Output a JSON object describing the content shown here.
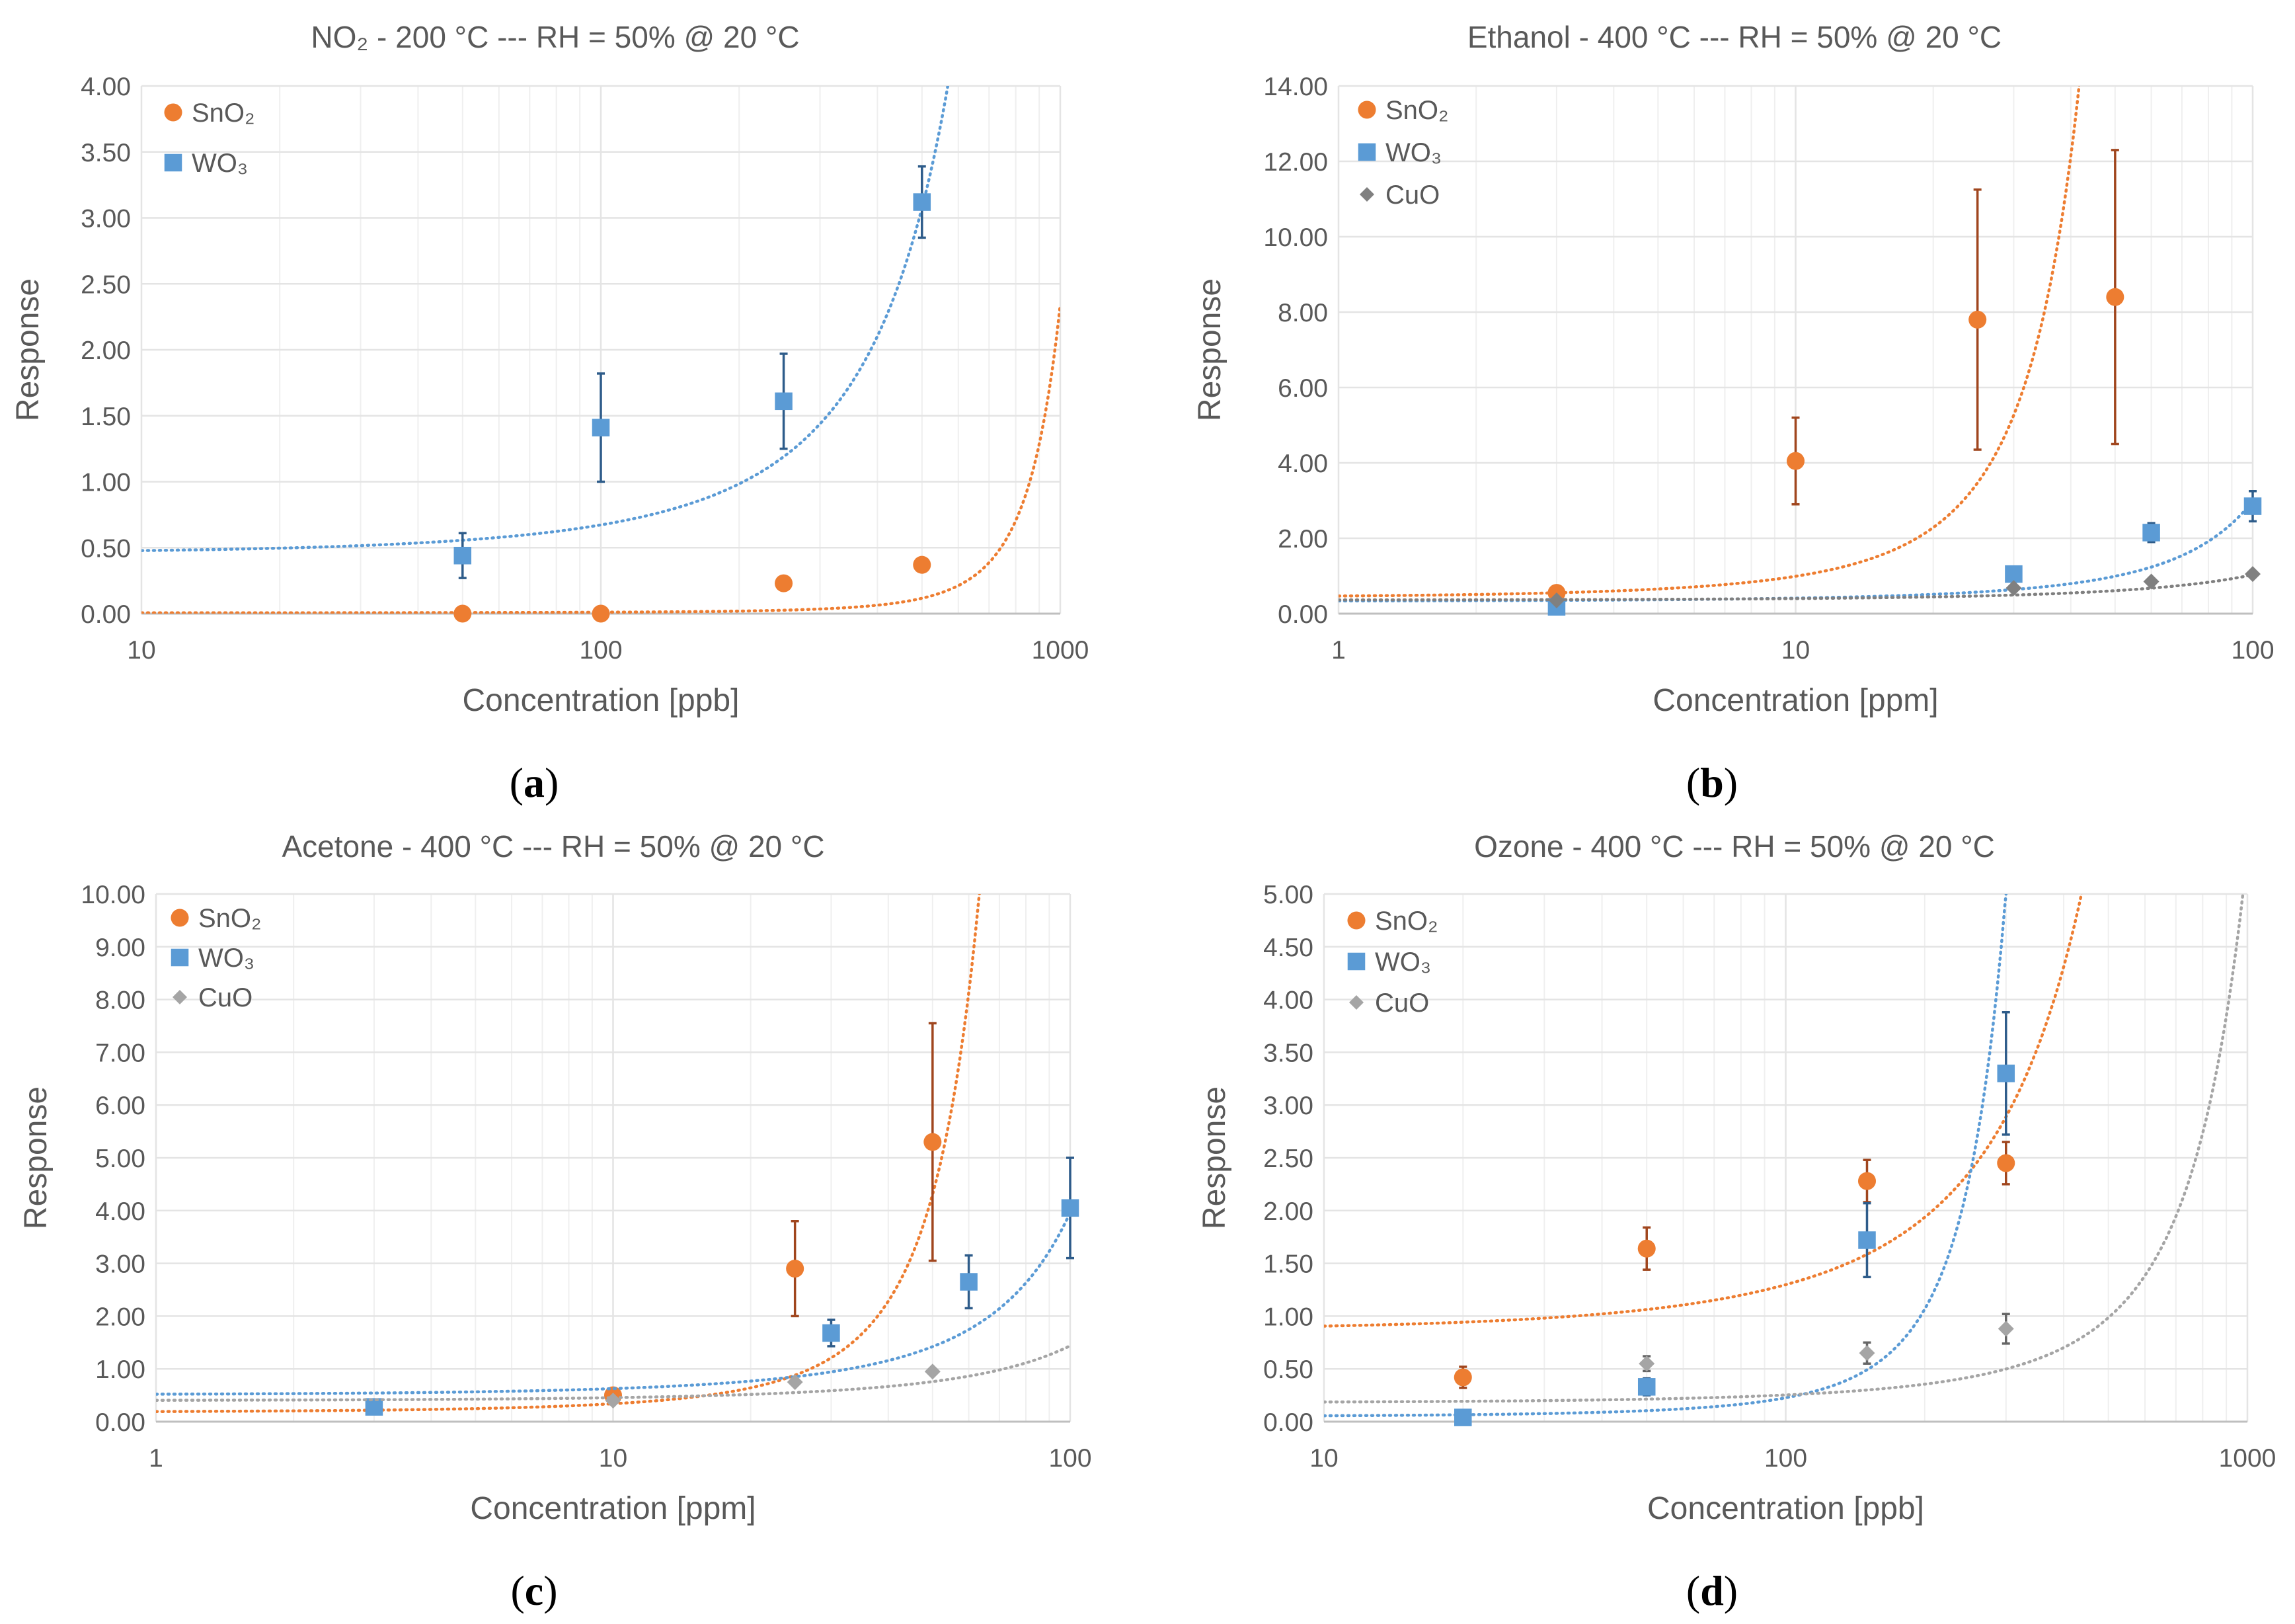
{
  "colors": {
    "sno2": "#ED7D31",
    "wo3": "#5B9BD5",
    "cuo": "#808080",
    "cuo_light": "#A5A5A5",
    "sno2_err": "#A0461E",
    "wo3_err": "#2E5C8A",
    "cuo_err": "#666666",
    "grid": "#E4E4E4",
    "text": "#595959"
  },
  "chart_data": [
    {
      "id": "a",
      "type": "scatter",
      "panel_label": "(a)",
      "panel_letter": "a",
      "title": "NO₂ - 200 °C --- RH = 50% @ 20 °C",
      "xlabel": "Concentration [ppb]",
      "ylabel": "Response",
      "xscale": "log",
      "xlim": [
        10,
        1000
      ],
      "ylim": [
        0,
        4
      ],
      "xticks": [
        10,
        100,
        1000
      ],
      "xtick_labels": [
        "10",
        "100",
        "1000"
      ],
      "yticks": [
        0,
        0.5,
        1,
        1.5,
        2,
        2.5,
        3,
        3.5,
        4
      ],
      "ytick_labels": [
        "0.00",
        "0.50",
        "1.00",
        "1.50",
        "2.00",
        "2.50",
        "3.00",
        "3.50",
        "4.00"
      ],
      "grid": true,
      "legend": "top-left",
      "series": [
        {
          "name": "SnO₂",
          "color_key": "sno2",
          "err_color_key": "sno2_err",
          "marker": "circle",
          "x": [
            50,
            100,
            250,
            500
          ],
          "y": [
            0.0,
            0.0,
            0.23,
            0.37
          ],
          "err": [
            0,
            0,
            0,
            0
          ],
          "trend": {
            "type": "exp",
            "a": 0.0058,
            "b": 0.006
          }
        },
        {
          "name": "WO₃",
          "color_key": "wo3",
          "err_color_key": "wo3_err",
          "marker": "square",
          "x": [
            50,
            100,
            250,
            500
          ],
          "y": [
            0.44,
            1.41,
            1.61,
            3.12
          ],
          "err": [
            0.17,
            0.41,
            0.36,
            0.27
          ],
          "trend": {
            "type": "exp",
            "a": 0.46,
            "b": 0.0038
          }
        }
      ]
    },
    {
      "id": "b",
      "type": "scatter",
      "panel_label": "(b)",
      "panel_letter": "b",
      "title": "Ethanol - 400 °C --- RH = 50% @ 20 °C",
      "xlabel": "Concentration [ppm]",
      "ylabel": "Response",
      "xscale": "log",
      "xlim": [
        1,
        100
      ],
      "ylim": [
        0,
        14
      ],
      "xticks": [
        1,
        10,
        100
      ],
      "xtick_labels": [
        "1",
        "10",
        "100"
      ],
      "yticks": [
        0,
        2,
        4,
        6,
        8,
        10,
        12,
        14
      ],
      "ytick_labels": [
        "0.00",
        "2.00",
        "4.00",
        "6.00",
        "8.00",
        "10.00",
        "12.00",
        "14.00"
      ],
      "grid": true,
      "legend": "top-left",
      "series": [
        {
          "name": "SnO₂",
          "color_key": "sno2",
          "err_color_key": "sno2_err",
          "marker": "circle",
          "x": [
            3,
            10,
            25,
            50
          ],
          "y": [
            0.55,
            4.05,
            7.8,
            8.4
          ],
          "err": [
            0.15,
            1.15,
            3.45,
            3.9
          ],
          "trend": {
            "type": "exp",
            "a": 0.43,
            "b": 0.0835
          }
        },
        {
          "name": "WO₃",
          "color_key": "wo3",
          "err_color_key": "wo3_err",
          "marker": "square",
          "x": [
            3,
            30,
            60,
            100
          ],
          "y": [
            0.18,
            1.05,
            2.15,
            2.85
          ],
          "err": [
            0.05,
            0.1,
            0.25,
            0.4
          ],
          "trend": {
            "type": "exp",
            "a": 0.33,
            "b": 0.022
          }
        },
        {
          "name": "CuO",
          "color_key": "cuo",
          "err_color_key": "cuo_err",
          "marker": "diamond",
          "x": [
            3,
            30,
            60,
            100
          ],
          "y": [
            0.35,
            0.68,
            0.85,
            1.05
          ],
          "err": [
            0,
            0,
            0,
            0
          ],
          "trend": {
            "type": "exp",
            "a": 0.36,
            "b": 0.0105
          }
        }
      ]
    },
    {
      "id": "c",
      "type": "scatter",
      "panel_label": "(c)",
      "panel_letter": "c",
      "title": "Acetone - 400 °C --- RH = 50% @ 20 °C",
      "xlabel": "Concentration [ppm]",
      "ylabel": "Response",
      "xscale": "log",
      "xlim": [
        1,
        100
      ],
      "ylim": [
        0,
        10
      ],
      "xticks": [
        1,
        10,
        100
      ],
      "xtick_labels": [
        "1",
        "10",
        "100"
      ],
      "yticks": [
        0,
        1,
        2,
        3,
        4,
        5,
        6,
        7,
        8,
        9,
        10
      ],
      "ytick_labels": [
        "0.00",
        "1.00",
        "2.00",
        "3.00",
        "4.00",
        "5.00",
        "6.00",
        "7.00",
        "8.00",
        "9.00",
        "10.00"
      ],
      "grid": true,
      "legend": "top-left",
      "series": [
        {
          "name": "SnO₂",
          "color_key": "sno2",
          "err_color_key": "sno2_err",
          "marker": "circle",
          "x": [
            10,
            25,
            50
          ],
          "y": [
            0.5,
            2.9,
            5.3
          ],
          "err": [
            0,
            0.9,
            2.25
          ],
          "trend": {
            "type": "exp",
            "a": 0.18,
            "b": 0.0635
          }
        },
        {
          "name": "WO₃",
          "color_key": "wo3",
          "err_color_key": "wo3_err",
          "marker": "square",
          "x": [
            3,
            30,
            60,
            100
          ],
          "y": [
            0.28,
            1.68,
            2.65,
            4.05
          ],
          "err": [
            0,
            0.25,
            0.5,
            0.95
          ],
          "trend": {
            "type": "exp",
            "a": 0.51,
            "b": 0.0205
          }
        },
        {
          "name": "CuO",
          "color_key": "cuo_light",
          "err_color_key": "cuo_err",
          "marker": "diamond",
          "x": [
            10,
            25,
            50
          ],
          "y": [
            0.4,
            0.75,
            0.95
          ],
          "err": [
            0,
            0,
            0
          ],
          "trend": {
            "type": "exp",
            "a": 0.4,
            "b": 0.0128
          }
        }
      ]
    },
    {
      "id": "d",
      "type": "scatter",
      "panel_label": "(d)",
      "panel_letter": "d",
      "title": "Ozone - 400 °C --- RH = 50% @ 20 °C",
      "xlabel": "Concentration [ppb]",
      "ylabel": "Response",
      "xscale": "log",
      "xlim": [
        10,
        1000
      ],
      "ylim": [
        0,
        5
      ],
      "xticks": [
        10,
        100,
        1000
      ],
      "xtick_labels": [
        "10",
        "100",
        "1000"
      ],
      "yticks": [
        0,
        0.5,
        1,
        1.5,
        2,
        2.5,
        3,
        3.5,
        4,
        4.5,
        5
      ],
      "ytick_labels": [
        "0.00",
        "0.50",
        "1.00",
        "1.50",
        "2.00",
        "2.50",
        "3.00",
        "3.50",
        "4.00",
        "4.50",
        "5.00"
      ],
      "grid": true,
      "legend": "top-left",
      "series": [
        {
          "name": "SnO₂",
          "color_key": "sno2",
          "err_color_key": "sno2_err",
          "marker": "circle",
          "x": [
            20,
            50,
            150,
            300
          ],
          "y": [
            0.42,
            1.64,
            2.28,
            2.45
          ],
          "err": [
            0.1,
            0.2,
            0.2,
            0.2
          ],
          "trend": {
            "type": "exp",
            "a": 0.87,
            "b": 0.004
          }
        },
        {
          "name": "WO₃",
          "color_key": "wo3",
          "err_color_key": "wo3_err",
          "marker": "square",
          "x": [
            20,
            50,
            150,
            300
          ],
          "y": [
            0.04,
            0.33,
            1.72,
            3.3
          ],
          "err": [
            0,
            0.08,
            0.35,
            0.58
          ],
          "trend": {
            "type": "exp",
            "a": 0.048,
            "b": 0.0155
          }
        },
        {
          "name": "CuO",
          "color_key": "cuo_light",
          "err_color_key": "cuo_err",
          "marker": "diamond",
          "x": [
            50,
            150,
            300
          ],
          "y": [
            0.55,
            0.65,
            0.88
          ],
          "err": [
            0.07,
            0.1,
            0.14
          ],
          "trend": {
            "type": "exp",
            "a": 0.18,
            "b": 0.0034
          }
        }
      ]
    }
  ]
}
